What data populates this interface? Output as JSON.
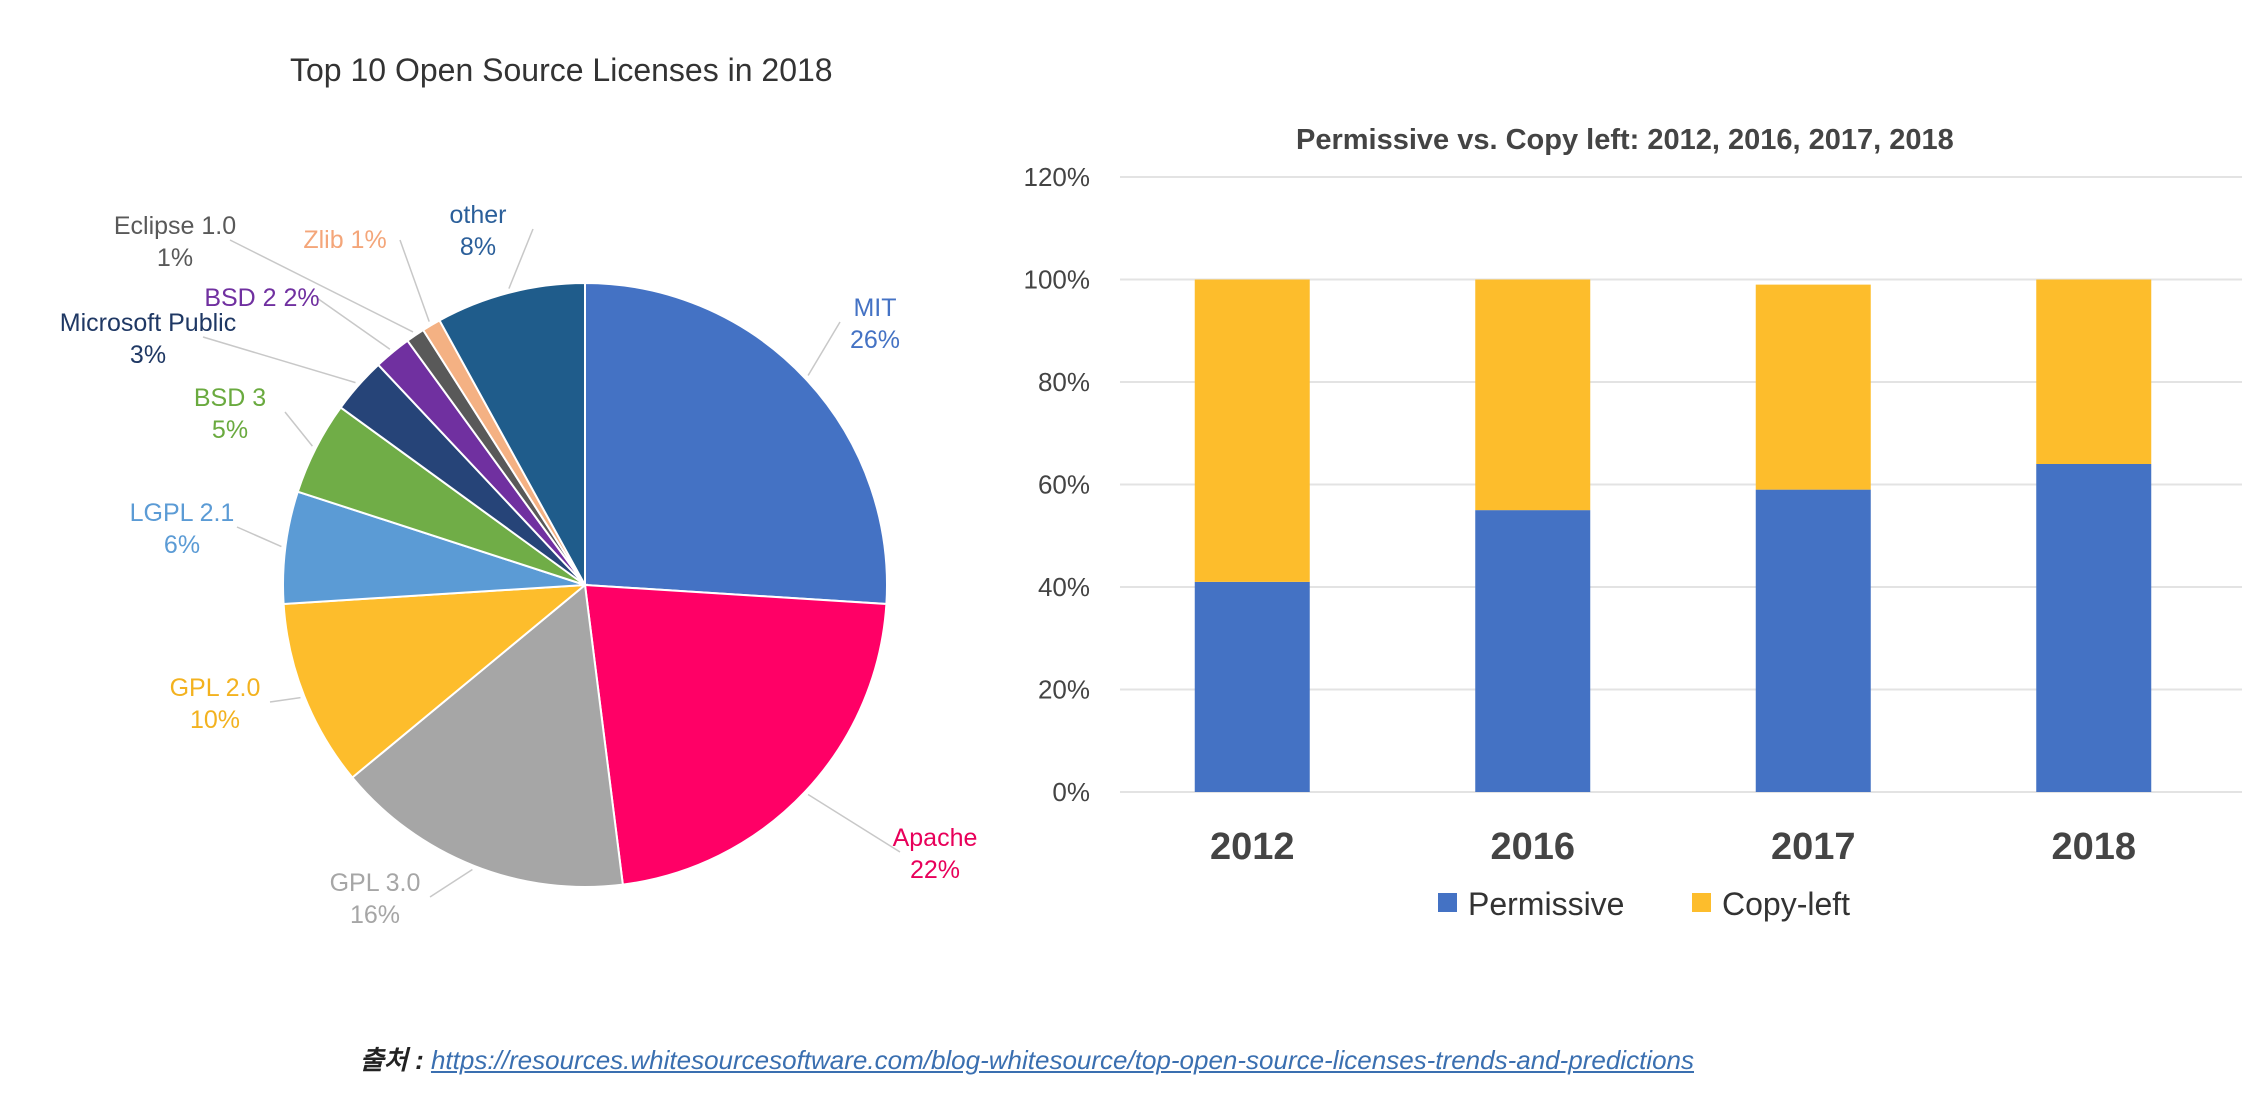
{
  "chart_data": [
    {
      "type": "pie",
      "title": "Top 10 Open Source Licenses in 2018",
      "slices": [
        {
          "name": "MIT",
          "value": 26,
          "label": "26%",
          "color": "#4472c4",
          "label_color": "#4472c4"
        },
        {
          "name": "Apache",
          "value": 22,
          "label": "22%",
          "color": "#ff0066",
          "label_color": "#e8005a"
        },
        {
          "name": "GPL 3.0",
          "value": 16,
          "label": "16%",
          "color": "#a6a6a6",
          "label_color": "#a6a6a6"
        },
        {
          "name": "GPL 2.0",
          "value": 10,
          "label": "10%",
          "color": "#fdbd2c",
          "label_color": "#f3b21f"
        },
        {
          "name": "LGPL 2.1",
          "value": 6,
          "label": "6%",
          "color": "#5b9bd5",
          "label_color": "#5b9bd5"
        },
        {
          "name": "BSD 3",
          "value": 5,
          "label": "5%",
          "color": "#70ad47",
          "label_color": "#6aaa3f"
        },
        {
          "name": "Microsoft Public",
          "value": 3,
          "label": "3%",
          "color": "#264478",
          "label_color": "#1f3864"
        },
        {
          "name": "BSD 2",
          "value": 2,
          "label": "2%",
          "color": "#7030a0",
          "label_color": "#7030a0"
        },
        {
          "name": "Eclipse 1.0",
          "value": 1,
          "label": "1%",
          "color": "#595959",
          "label_color": "#595959"
        },
        {
          "name": "Zlib",
          "value": 1,
          "label": "1%",
          "color": "#f4b183",
          "label_color": "#f4a67a"
        },
        {
          "name": "other",
          "value": 8,
          "label": "8%",
          "color": "#1f5c8b",
          "label_color": "#2b5f9a"
        }
      ]
    },
    {
      "type": "bar",
      "stacked": true,
      "title": "Permissive vs. Copy left: 2012, 2016, 2017, 2018",
      "categories": [
        "2012",
        "2016",
        "2017",
        "2018"
      ],
      "series": [
        {
          "name": "Permissive",
          "values": [
            41,
            55,
            59,
            64
          ],
          "color": "#4472c4"
        },
        {
          "name": "Copy-left",
          "values": [
            59,
            45,
            40,
            36
          ],
          "color": "#fdbd2c"
        }
      ],
      "ylim": [
        0,
        120
      ],
      "yticks": [
        "0%",
        "20%",
        "40%",
        "60%",
        "80%",
        "100%",
        "120%"
      ],
      "grid": true,
      "legend": "bottom"
    }
  ],
  "source": {
    "label": "출처 :",
    "url": "https://resources.whitesourcesoftware.com/blog-whitesource/top-open-source-licenses-trends-and-predictions"
  }
}
